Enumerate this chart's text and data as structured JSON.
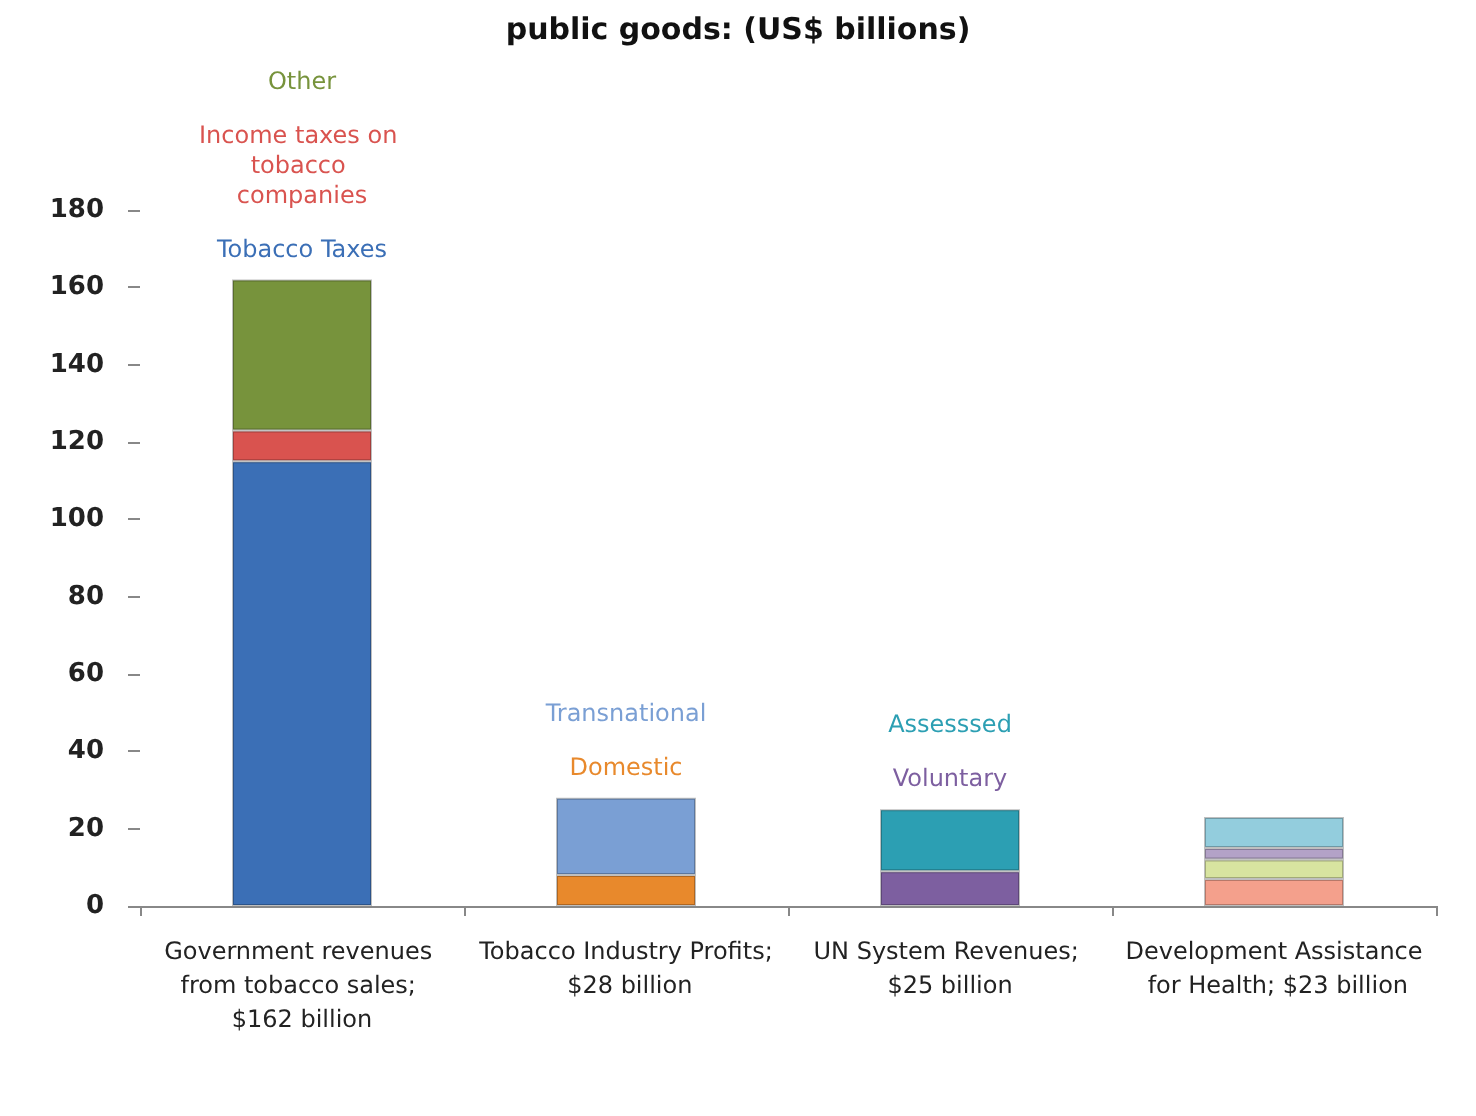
{
  "chart_data": {
    "type": "bar",
    "stacked": true,
    "title": "public goods: (US$ billions)",
    "categories": [
      "Government revenues from tobacco sales; $162 billion",
      "Tobacco Industry Profits; $28 billion",
      "UN System Revenues; $25 billion",
      "Development Assistance for Health; $23 billion"
    ],
    "series": [
      {
        "name": "Tobacco Taxes",
        "color": "#3b6fb6",
        "values": [
          115,
          null,
          null,
          null
        ]
      },
      {
        "name": "Income taxes on tobacco companies",
        "color": "#d9534f",
        "values": [
          8,
          null,
          null,
          null
        ]
      },
      {
        "name": "Other",
        "color": "#77933c",
        "values": [
          39,
          null,
          null,
          null
        ]
      },
      {
        "name": "Domestic",
        "color": "#e8892c",
        "values": [
          null,
          8,
          null,
          null
        ]
      },
      {
        "name": "Transnational",
        "color": "#7a9fd4",
        "values": [
          null,
          20,
          null,
          null
        ]
      },
      {
        "name": "Voluntary",
        "color": "#7d5fa0",
        "values": [
          null,
          null,
          9,
          null
        ]
      },
      {
        "name": "Assesssed",
        "color": "#2c9fb3",
        "values": [
          null,
          null,
          16,
          null
        ]
      },
      {
        "color": "#f4a08c",
        "values": [
          null,
          null,
          null,
          7
        ]
      },
      {
        "color": "#d8e4a0",
        "values": [
          null,
          null,
          null,
          5
        ]
      },
      {
        "color": "#b3a2c7",
        "values": [
          null,
          null,
          null,
          3
        ]
      },
      {
        "color": "#93cddd",
        "values": [
          null,
          null,
          null,
          8
        ]
      }
    ],
    "ylim": [
      0,
      180
    ],
    "yticks": [
      0,
      20,
      40,
      60,
      80,
      100,
      120,
      140,
      160,
      180
    ],
    "grid": false,
    "legend": false
  }
}
